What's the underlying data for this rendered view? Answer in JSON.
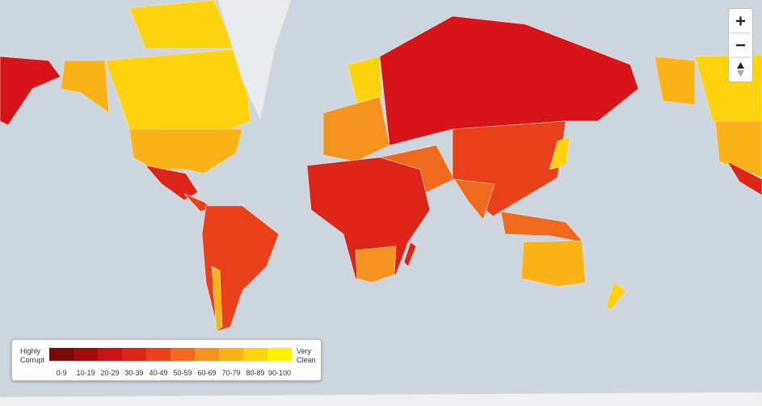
{
  "legend": {
    "low_label": "Highly Corrupt",
    "high_label": "Very Clean",
    "ranges": [
      "0-9",
      "10-19",
      "20-29",
      "30-39",
      "40-49",
      "50-59",
      "60-69",
      "70-79",
      "80-89",
      "90-100"
    ],
    "colors": [
      "#7a0a0a",
      "#a00d0d",
      "#c81414",
      "#dd2418",
      "#e8411c",
      "#ef6a1e",
      "#f59320",
      "#fab41a",
      "#fdd20e",
      "#fff200"
    ]
  }
}
